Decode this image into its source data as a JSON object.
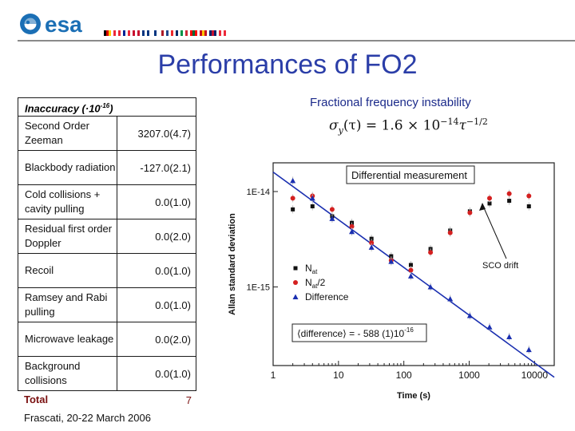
{
  "header": {
    "logo_text": "esa",
    "flag_colors": [
      [
        "#000000",
        "#dd0000",
        "#ffce00"
      ],
      [
        "#ed2939",
        "#ffffff",
        "#ed2939"
      ],
      [
        "#002395",
        "#ffffff",
        "#ed2939"
      ],
      [
        "#c8102e",
        "#ffffff",
        "#c8102e"
      ],
      [
        "#003580",
        "#ffffff",
        "#003580"
      ],
      [
        "#ffffff",
        "#003580",
        "#ffffff"
      ],
      [
        "#ae1c28",
        "#ffffff",
        "#21468b"
      ],
      [
        "#ef2b2d",
        "#ffffff",
        "#002868"
      ],
      [
        "#009246",
        "#ffffff",
        "#ce2b37"
      ],
      [
        "#ff0000",
        "#046a38",
        "#ff0000"
      ],
      [
        "#c60b1e",
        "#ffc400",
        "#c60b1e"
      ],
      [
        "#012169",
        "#c8102e",
        "#012169"
      ],
      [
        "#ed2939",
        "#ffffff",
        "#ed2939"
      ]
    ]
  },
  "title": "Performances of FO2",
  "table": {
    "header": "Inaccuracy (·10",
    "header_exp": "-16",
    "header_close": ")",
    "rows": [
      {
        "label": "Second Order Zeeman",
        "value": "3207.0(4.7)"
      },
      {
        "label": "Blackbody radiation",
        "value": "-127.0(2.1)"
      },
      {
        "label": "Cold collisions + cavity pulling",
        "value": "0.0(1.0)"
      },
      {
        "label": "Residual first order Doppler",
        "value": "0.0(2.0)"
      },
      {
        "label": "Recoil",
        "value": "0.0(1.0)"
      },
      {
        "label": "Ramsey and Rabi pulling",
        "value": "0.0(1.0)"
      },
      {
        "label": "Microwave leakage",
        "value": "0.0(2.0)"
      },
      {
        "label": "Background collisions",
        "value": "0.0(1.0)"
      }
    ],
    "total": {
      "label": "Total",
      "value": "7"
    }
  },
  "footer": "Frascati, 20-22 March 2006",
  "right": {
    "title": "Fractional frequency instability",
    "formula_lhs": "σ",
    "formula_sub": "y",
    "formula_mid": "(τ) = 1.6 × 10",
    "formula_exp1": "−14",
    "formula_tau": "τ",
    "formula_exp2": "−1/2"
  },
  "chart_data": {
    "type": "scatter",
    "title": "",
    "xlabel": "Time (s)",
    "ylabel": "Allan standard deviation",
    "x_scale": "log",
    "y_scale": "log",
    "xlim": [
      1,
      20000
    ],
    "ylim": [
      1.5e-16,
      2e-14
    ],
    "x_ticks": [
      "1",
      "10",
      "100",
      "1000",
      "10000"
    ],
    "y_ticks": [
      "1E-14",
      "1E-15"
    ],
    "series": [
      {
        "name": "N",
        "sub": "at",
        "marker": "square",
        "color": "#111111",
        "x": [
          2,
          4,
          8,
          16,
          32,
          64,
          128,
          256,
          512,
          1024,
          2048,
          4096,
          8192
        ],
        "y": [
          6.5e-15,
          7e-15,
          5.5e-15,
          4.7e-15,
          3.2e-15,
          2.1e-15,
          1.7e-15,
          2.5e-15,
          3.9e-15,
          6.2e-15,
          7.5e-15,
          8e-15,
          7e-15
        ]
      },
      {
        "name": "N",
        "sub": "at",
        "suffix": "/2",
        "marker": "circle",
        "color": "#d42020",
        "x": [
          2,
          4,
          8,
          16,
          32,
          64,
          128,
          256,
          512,
          1024,
          2048,
          4096,
          8192
        ],
        "y": [
          8.5e-15,
          9e-15,
          6.5e-15,
          4.3e-15,
          2.9e-15,
          1.9e-15,
          1.5e-15,
          2.3e-15,
          3.7e-15,
          6e-15,
          8.5e-15,
          9.5e-15,
          9e-15
        ]
      },
      {
        "name": "Difference",
        "marker": "triangle",
        "color": "#1a2fb0",
        "x": [
          2,
          4,
          8,
          16,
          32,
          64,
          128,
          256,
          512,
          1024,
          2048,
          4096,
          8192
        ],
        "y": [
          1.3e-14,
          8.5e-15,
          5.2e-15,
          3.8e-15,
          2.6e-15,
          1.85e-15,
          1.3e-15,
          1e-15,
          7.5e-16,
          5e-16,
          3.8e-16,
          3e-16,
          2.2e-16
        ]
      }
    ],
    "fit_line": {
      "coefficient": 1.6e-14,
      "exponent": -0.5
    },
    "annotations": {
      "box_label": "Differential measurement",
      "drift_label": "SCO drift",
      "difference_text": "⟨difference⟩ = - 588 (1)10",
      "difference_exp": "-16"
    }
  }
}
